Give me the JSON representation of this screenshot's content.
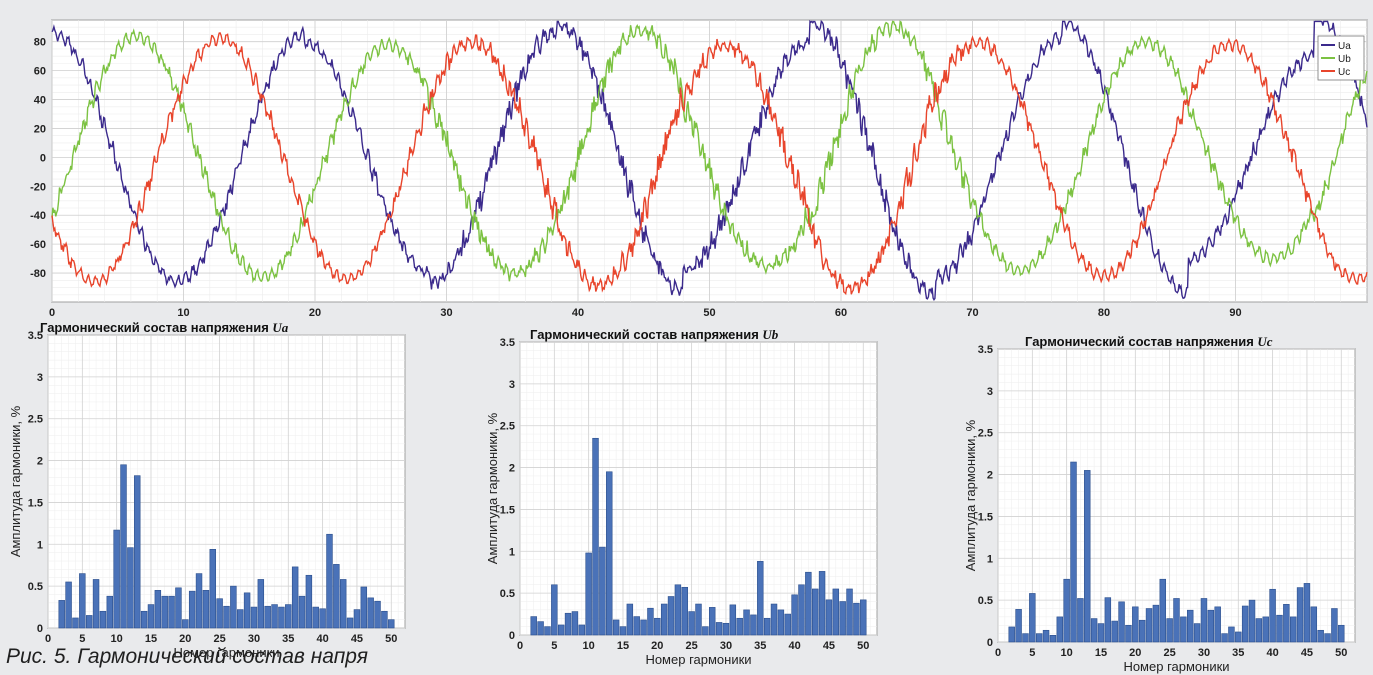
{
  "figure": {
    "caption": "Рис. 5. Гармонический состав напря"
  },
  "chart_data": [
    {
      "type": "line",
      "title": "",
      "xlabel": "",
      "ylabel": "",
      "xlim": [
        0,
        100
      ],
      "ylim": [
        -100,
        95
      ],
      "x_ticks": [
        "0",
        "10",
        "20",
        "30",
        "40",
        "50",
        "60",
        "70",
        "80",
        "90"
      ],
      "y_ticks": [
        "80",
        "60",
        "40",
        "20",
        "0",
        "-20",
        "-40",
        "-60",
        "-80"
      ],
      "grid": true,
      "legend_position": "top-right",
      "series": [
        {
          "name": "Ua",
          "color": "#3b2a8c",
          "amplitudes": [
            86,
            85,
            80,
            87,
            92,
            78,
            95,
            83,
            94,
            70,
            98,
            72
          ],
          "phase_deg": 90
        },
        {
          "name": "Ub",
          "color": "#7cc242",
          "amplitudes": [
            84,
            83,
            78,
            80,
            88,
            75,
            90,
            78,
            80,
            70,
            86,
            74
          ],
          "phase_deg": -30
        },
        {
          "name": "Uc",
          "color": "#e8452c",
          "amplitudes": [
            86,
            82,
            84,
            80,
            88,
            77,
            90,
            80,
            82,
            78,
            84,
            70
          ],
          "phase_deg": 210
        }
      ],
      "period": 19.2
    },
    {
      "type": "bar",
      "title": "Гармонический состав напряжения",
      "title_var": "Ua",
      "xlabel": "Номер гармоники",
      "ylabel": "Амплитуда гармоники, %",
      "xlim": [
        0,
        52
      ],
      "ylim": [
        0,
        3.5
      ],
      "x_ticks": [
        "0",
        "5",
        "10",
        "15",
        "20",
        "25",
        "30",
        "35",
        "40",
        "45",
        "50"
      ],
      "y_ticks": [
        "0",
        "0.5",
        "1",
        "1.5",
        "2",
        "2.5",
        "3",
        "3.5"
      ],
      "grid": true,
      "bar_color": "#4a72b8",
      "categories": [
        2,
        3,
        4,
        5,
        6,
        7,
        8,
        9,
        10,
        11,
        12,
        13,
        14,
        15,
        16,
        17,
        18,
        19,
        20,
        21,
        22,
        23,
        24,
        25,
        26,
        27,
        28,
        29,
        30,
        31,
        32,
        33,
        34,
        35,
        36,
        37,
        38,
        39,
        40,
        41,
        42,
        43,
        44,
        45,
        46,
        47,
        48,
        49,
        50
      ],
      "values": [
        0.33,
        0.55,
        0.12,
        0.65,
        0.15,
        0.58,
        0.2,
        0.38,
        1.17,
        1.95,
        0.96,
        1.82,
        0.2,
        0.28,
        0.45,
        0.38,
        0.38,
        0.48,
        0.1,
        0.44,
        0.65,
        0.45,
        0.94,
        0.35,
        0.26,
        0.5,
        0.22,
        0.42,
        0.25,
        0.58,
        0.26,
        0.28,
        0.25,
        0.28,
        0.73,
        0.38,
        0.63,
        0.25,
        0.23,
        1.12,
        0.76,
        0.58,
        0.12,
        0.22,
        0.49,
        0.36,
        0.32,
        0.2,
        0.1
      ]
    },
    {
      "type": "bar",
      "title": "Гармонический состав напряжения",
      "title_var": "Ub",
      "xlabel": "Номер гармоники",
      "ylabel": "Амплитуда гармоники, %",
      "xlim": [
        0,
        52
      ],
      "ylim": [
        0,
        3.5
      ],
      "x_ticks": [
        "0",
        "5",
        "10",
        "15",
        "20",
        "25",
        "30",
        "35",
        "40",
        "45",
        "50"
      ],
      "y_ticks": [
        "0",
        "0.5",
        "1",
        "1.5",
        "2",
        "2.5",
        "3",
        "3.5"
      ],
      "grid": true,
      "bar_color": "#4a72b8",
      "categories": [
        2,
        3,
        4,
        5,
        6,
        7,
        8,
        9,
        10,
        11,
        12,
        13,
        14,
        15,
        16,
        17,
        18,
        19,
        20,
        21,
        22,
        23,
        24,
        25,
        26,
        27,
        28,
        29,
        30,
        31,
        32,
        33,
        34,
        35,
        36,
        37,
        38,
        39,
        40,
        41,
        42,
        43,
        44,
        45,
        46,
        47,
        48,
        49,
        50
      ],
      "values": [
        0.22,
        0.16,
        0.1,
        0.6,
        0.12,
        0.26,
        0.28,
        0.12,
        0.98,
        2.35,
        1.05,
        1.95,
        0.18,
        0.1,
        0.37,
        0.22,
        0.18,
        0.32,
        0.2,
        0.37,
        0.46,
        0.6,
        0.57,
        0.28,
        0.37,
        0.1,
        0.33,
        0.15,
        0.14,
        0.36,
        0.2,
        0.3,
        0.24,
        0.88,
        0.2,
        0.37,
        0.3,
        0.25,
        0.48,
        0.6,
        0.75,
        0.55,
        0.76,
        0.42,
        0.55,
        0.4,
        0.55,
        0.38,
        0.42
      ]
    },
    {
      "type": "bar",
      "title": "Гармонический состав напряжения",
      "title_var": "Uc",
      "xlabel": "Номер гармоники",
      "ylabel": "Амплитуда гармоники, %",
      "xlim": [
        0,
        52
      ],
      "ylim": [
        0,
        3.5
      ],
      "x_ticks": [
        "0",
        "5",
        "10",
        "15",
        "20",
        "25",
        "30",
        "35",
        "40",
        "45",
        "50"
      ],
      "y_ticks": [
        "0",
        "0.5",
        "1",
        "1.5",
        "2",
        "2.5",
        "3",
        "3.5"
      ],
      "grid": true,
      "bar_color": "#4a72b8",
      "categories": [
        2,
        3,
        4,
        5,
        6,
        7,
        8,
        9,
        10,
        11,
        12,
        13,
        14,
        15,
        16,
        17,
        18,
        19,
        20,
        21,
        22,
        23,
        24,
        25,
        26,
        27,
        28,
        29,
        30,
        31,
        32,
        33,
        34,
        35,
        36,
        37,
        38,
        39,
        40,
        41,
        42,
        43,
        44,
        45,
        46,
        47,
        48,
        49,
        50
      ],
      "values": [
        0.18,
        0.39,
        0.1,
        0.58,
        0.1,
        0.14,
        0.08,
        0.3,
        0.75,
        2.15,
        0.52,
        2.05,
        0.28,
        0.22,
        0.53,
        0.25,
        0.48,
        0.2,
        0.42,
        0.26,
        0.4,
        0.44,
        0.75,
        0.28,
        0.52,
        0.3,
        0.38,
        0.22,
        0.52,
        0.38,
        0.42,
        0.1,
        0.18,
        0.12,
        0.43,
        0.5,
        0.28,
        0.3,
        0.63,
        0.32,
        0.45,
        0.3,
        0.65,
        0.7,
        0.42,
        0.14,
        0.1,
        0.4,
        0.2
      ]
    }
  ]
}
